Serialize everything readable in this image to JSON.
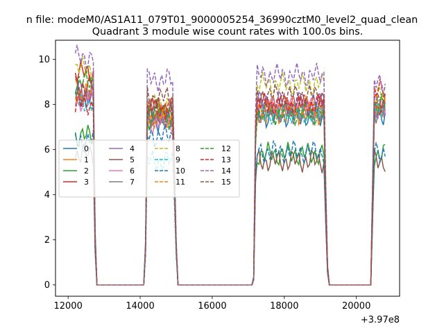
{
  "chart_data": {
    "type": "line",
    "suptitle": "n file: modeM0/AS1A11_079T01_9000005254_36990cztM0_level2_quad_clean",
    "title": "Quadrant 3 module wise count rates with 100.0s bins.",
    "xlabel": "",
    "ylabel": "",
    "x_offset_label": "+3.97e8",
    "xlim": [
      11650,
      21200
    ],
    "ylim": [
      -0.5,
      10.85
    ],
    "x_ticks": [
      12000,
      14000,
      16000,
      18000,
      20000
    ],
    "x_tick_labels": [
      "12000",
      "14000",
      "16000",
      "18000",
      "20000"
    ],
    "y_ticks": [
      0,
      2,
      4,
      6,
      8,
      10
    ],
    "y_tick_labels": [
      "0",
      "2",
      "4",
      "6",
      "8",
      "10"
    ],
    "grid": false,
    "legend_position": "center-left",
    "legend_columns": 4,
    "segments": [
      {
        "x_start": 12200,
        "x_end": 12700,
        "bin": 50
      },
      {
        "x_start": 14200,
        "x_end": 14900,
        "bin": 50
      },
      {
        "x_start": 17250,
        "x_end": 19100,
        "bin": 50
      },
      {
        "x_start": 20500,
        "x_end": 20800,
        "bin": 50
      }
    ],
    "zero_bins": [
      12800,
      14100,
      15050,
      17100,
      19250,
      20400
    ],
    "edge_bins": [
      {
        "x": 12750,
        "frac": 0.25
      },
      {
        "x": 14150,
        "frac": 0.22
      },
      {
        "x": 15000,
        "frac": 0.22
      },
      {
        "x": 17150,
        "frac": 0.04
      },
      {
        "x": 17200,
        "frac": 0.82
      },
      {
        "x": 19150,
        "frac": 0.5
      },
      {
        "x": 19200,
        "frac": 0.1
      },
      {
        "x": 20450,
        "frac": 0.5
      }
    ],
    "series": [
      {
        "name": "0",
        "color": "#1f77b4",
        "dash": false,
        "levels": [
          8.3,
          7.3,
          7.5,
          7.6
        ]
      },
      {
        "name": "1",
        "color": "#ff7f0e",
        "dash": false,
        "levels": [
          8.8,
          7.5,
          7.6,
          7.9
        ]
      },
      {
        "name": "2",
        "color": "#2ca02c",
        "dash": false,
        "levels": [
          6.6,
          7.4,
          5.8,
          5.8
        ]
      },
      {
        "name": "3",
        "color": "#d62728",
        "dash": false,
        "levels": [
          9.4,
          7.9,
          7.9,
          7.7
        ]
      },
      {
        "name": "4",
        "color": "#9467bd",
        "dash": false,
        "levels": [
          8.6,
          7.6,
          8.1,
          8.0
        ]
      },
      {
        "name": "5",
        "color": "#8c564b",
        "dash": false,
        "levels": [
          8.4,
          7.5,
          5.5,
          5.5
        ]
      },
      {
        "name": "6",
        "color": "#e377c2",
        "dash": false,
        "levels": [
          8.2,
          7.2,
          7.8,
          7.8
        ]
      },
      {
        "name": "7",
        "color": "#7f7f7f",
        "dash": false,
        "levels": [
          5.8,
          7.4,
          7.6,
          7.7
        ]
      },
      {
        "name": "8",
        "color": "#bcbd22",
        "dash": true,
        "levels": [
          9.6,
          8.0,
          8.9,
          8.4
        ]
      },
      {
        "name": "9",
        "color": "#17becf",
        "dash": true,
        "levels": [
          8.1,
          5.5,
          7.6,
          7.7
        ]
      },
      {
        "name": "10",
        "color": "#1f77b4",
        "dash": true,
        "levels": [
          6.4,
          6.6,
          5.9,
          5.9
        ]
      },
      {
        "name": "11",
        "color": "#ff7f0e",
        "dash": true,
        "levels": [
          8.5,
          7.4,
          7.9,
          8.3
        ]
      },
      {
        "name": "12",
        "color": "#2ca02c",
        "dash": true,
        "levels": [
          9.0,
          7.7,
          7.6,
          8.0
        ]
      },
      {
        "name": "13",
        "color": "#d62728",
        "dash": true,
        "levels": [
          8.0,
          7.8,
          8.0,
          8.6
        ]
      },
      {
        "name": "14",
        "color": "#9467bd",
        "dash": true,
        "levels": [
          10.1,
          9.1,
          9.3,
          8.9
        ]
      },
      {
        "name": "15",
        "color": "#8c564b",
        "dash": true,
        "levels": [
          8.8,
          8.3,
          8.4,
          8.2
        ]
      }
    ]
  }
}
